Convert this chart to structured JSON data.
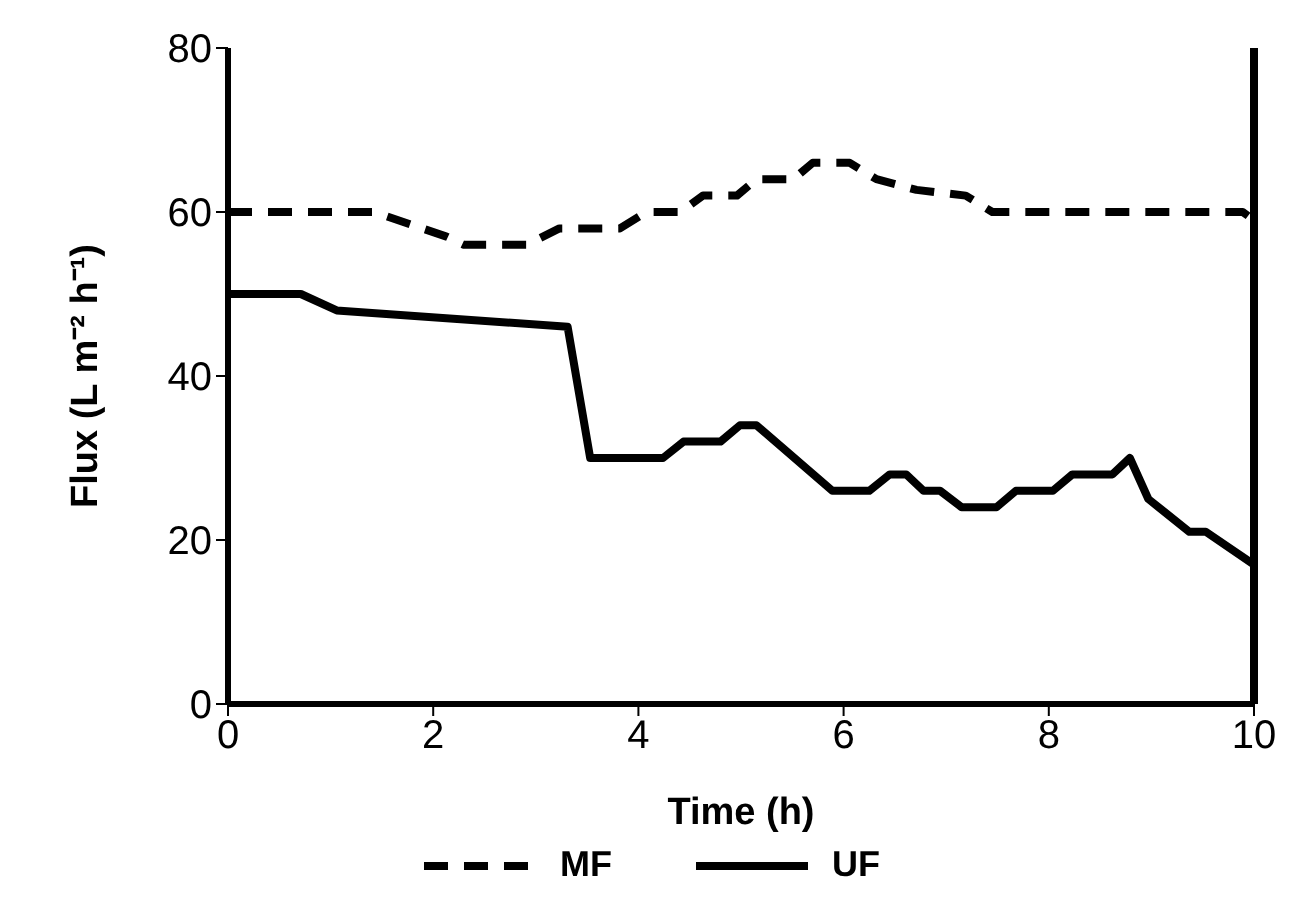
{
  "chart_data": {
    "type": "line",
    "xlabel": "Time (h)",
    "ylabel": "Flux (L m⁻² h⁻¹)",
    "xlim": [
      0,
      10
    ],
    "xticks": [
      0,
      2,
      4,
      6,
      8,
      10
    ],
    "ylim": [
      0,
      80
    ],
    "yticks": [
      0,
      20,
      40,
      60,
      80
    ],
    "legend": "bottom",
    "marker": "none",
    "series": [
      {
        "name": "MF",
        "color": "#000000",
        "line_style": "dashed",
        "x": [
          0,
          1.42,
          2.13,
          2.3,
          2.91,
          3.23,
          3.82,
          4.08,
          4.41,
          4.63,
          4.96,
          5.15,
          5.51,
          5.7,
          6.06,
          6.32,
          6.71,
          7.19,
          7.45,
          9.89,
          10
        ],
        "values": [
          60,
          60,
          57,
          56,
          56,
          58,
          58,
          60,
          60,
          62,
          62,
          64,
          64,
          66,
          66,
          64,
          62.7,
          62,
          60,
          60,
          59
        ]
      },
      {
        "name": "UF",
        "color": "#000000",
        "line_style": "solid",
        "x": [
          0,
          0.71,
          1.06,
          3.31,
          3.53,
          4.24,
          4.44,
          4.8,
          4.99,
          5.15,
          5.89,
          6.25,
          6.45,
          6.61,
          6.78,
          6.94,
          7.15,
          7.49,
          7.68,
          8.04,
          8.23,
          8.62,
          8.79,
          8.97,
          9.37,
          9.53,
          10
        ],
        "values": [
          50,
          50,
          48,
          46,
          30,
          30,
          32,
          32,
          34,
          34,
          26,
          26,
          28,
          28,
          26,
          26,
          24,
          24,
          26,
          26,
          28,
          28,
          30,
          25,
          21,
          21,
          17
        ]
      }
    ]
  }
}
